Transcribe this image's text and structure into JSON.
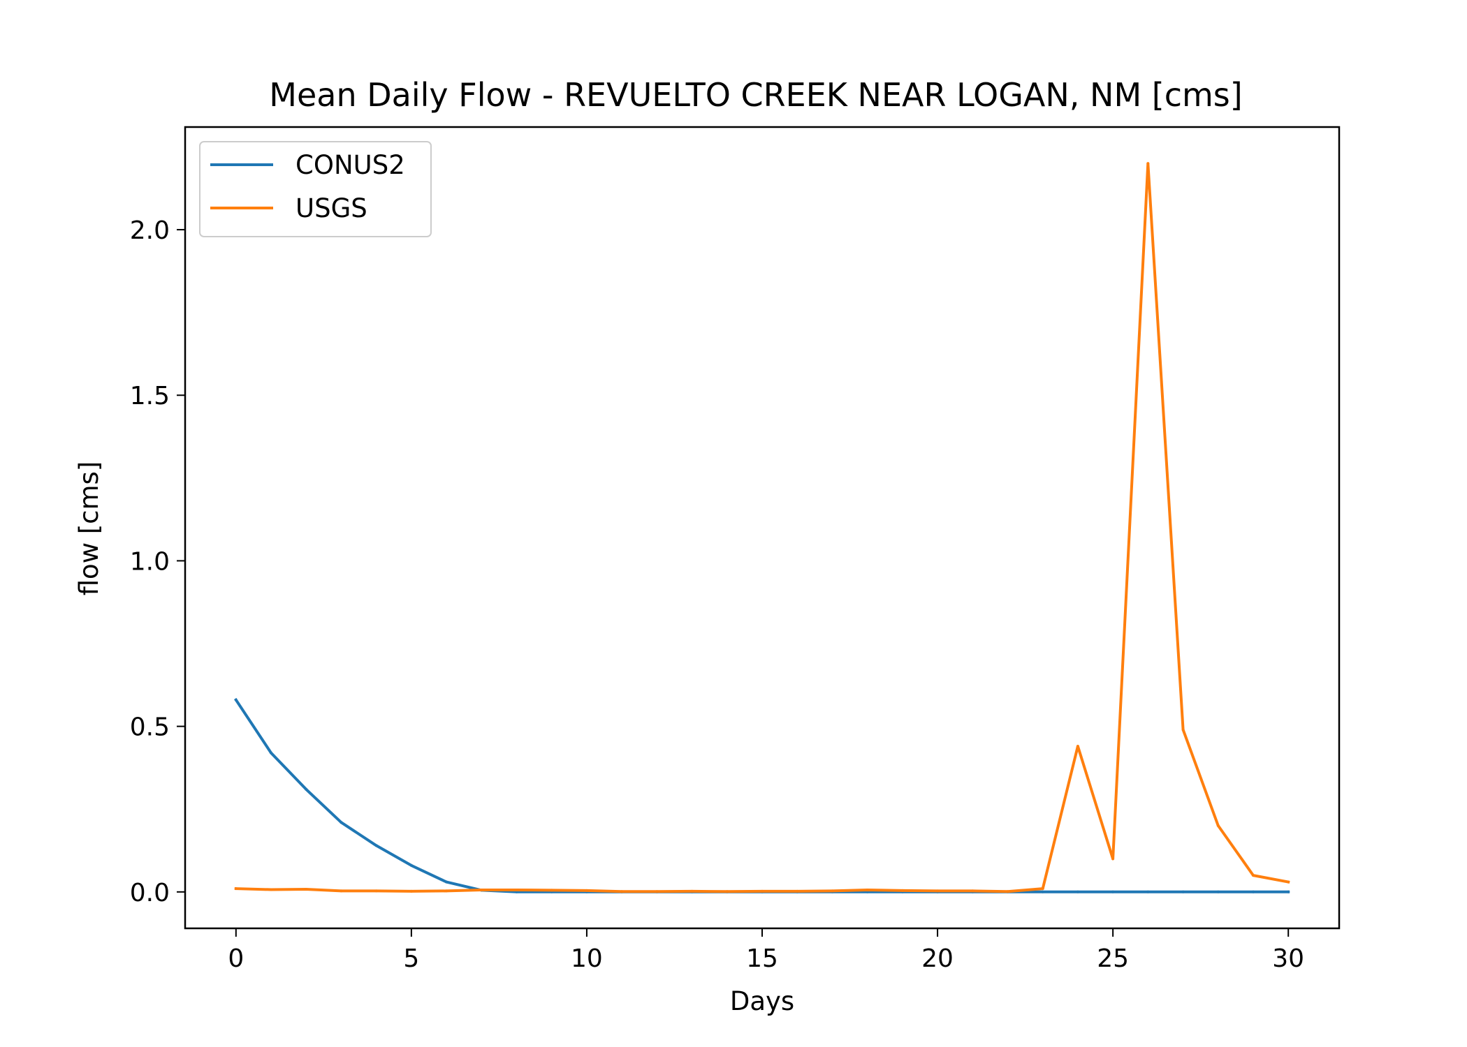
{
  "chart_data": {
    "type": "line",
    "title": "Mean Daily Flow - REVUELTO CREEK NEAR LOGAN, NM [cms]",
    "xlabel": "Days",
    "ylabel": "flow [cms]",
    "xlim": [
      -1.45,
      31.45
    ],
    "ylim": [
      -0.11,
      2.31
    ],
    "xticks": [
      0,
      5,
      10,
      15,
      20,
      25,
      30
    ],
    "yticks": [
      0.0,
      0.5,
      1.0,
      1.5,
      2.0
    ],
    "xtick_labels": [
      "0",
      "5",
      "10",
      "15",
      "20",
      "25",
      "30"
    ],
    "ytick_labels": [
      "0.0",
      "0.5",
      "1.0",
      "1.5",
      "2.0"
    ],
    "grid": false,
    "legend_position": "upper-left",
    "x": [
      0,
      1,
      2,
      3,
      4,
      5,
      6,
      7,
      8,
      9,
      10,
      11,
      12,
      13,
      14,
      15,
      16,
      17,
      18,
      19,
      20,
      21,
      22,
      23,
      24,
      25,
      26,
      27,
      28,
      29,
      30
    ],
    "series": [
      {
        "name": "CONUS2",
        "color": "#1f77b4",
        "values": [
          0.58,
          0.42,
          0.31,
          0.21,
          0.14,
          0.08,
          0.03,
          0.005,
          0.0,
          0.0,
          0.0,
          0.0,
          0.0,
          0.0,
          0.0,
          0.0,
          0.0,
          0.0,
          0.0,
          0.0,
          0.0,
          0.0,
          0.0,
          0.0,
          0.0,
          0.0,
          0.0,
          0.0,
          0.0,
          0.0,
          0.0
        ]
      },
      {
        "name": "USGS",
        "color": "#ff7f0e",
        "values": [
          0.01,
          0.007,
          0.008,
          0.003,
          0.003,
          0.002,
          0.003,
          0.006,
          0.006,
          0.005,
          0.004,
          0.001,
          0.001,
          0.002,
          0.001,
          0.002,
          0.002,
          0.003,
          0.006,
          0.004,
          0.003,
          0.003,
          0.001,
          0.01,
          0.44,
          0.1,
          2.2,
          0.49,
          0.2,
          0.05,
          0.03
        ]
      }
    ]
  }
}
